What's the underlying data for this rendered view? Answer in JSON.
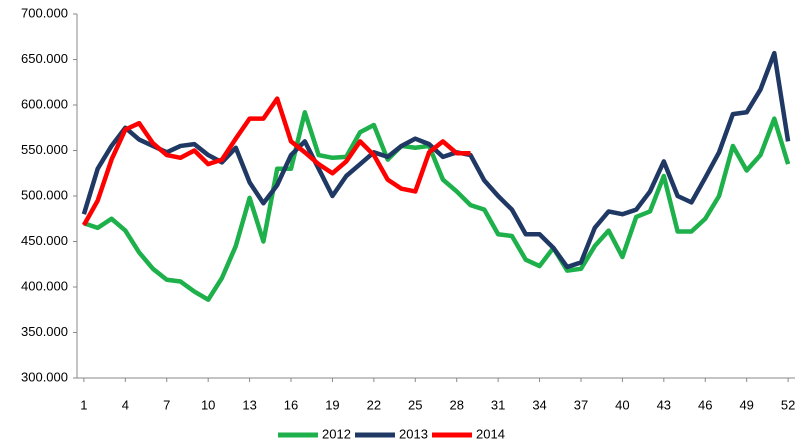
{
  "chart_data": {
    "type": "line",
    "x": [
      1,
      2,
      3,
      4,
      5,
      6,
      7,
      8,
      9,
      10,
      11,
      12,
      13,
      14,
      15,
      16,
      17,
      18,
      19,
      20,
      21,
      22,
      23,
      24,
      25,
      26,
      27,
      28,
      29,
      30,
      31,
      32,
      33,
      34,
      35,
      36,
      37,
      38,
      39,
      40,
      41,
      42,
      43,
      44,
      45,
      46,
      47,
      48,
      49,
      50,
      51,
      52
    ],
    "series": [
      {
        "name": "2012",
        "color": "#1db04b",
        "values": [
          470000,
          465000,
          475000,
          462000,
          438000,
          420000,
          408000,
          406000,
          395000,
          386000,
          410000,
          445000,
          498000,
          450000,
          530000,
          530000,
          592000,
          545000,
          542000,
          543000,
          570000,
          578000,
          540000,
          555000,
          553000,
          555000,
          518000,
          505000,
          490000,
          485000,
          458000,
          456000,
          430000,
          423000,
          443000,
          418000,
          420000,
          445000,
          462000,
          433000,
          477000,
          483000,
          522000,
          461000,
          461000,
          475000,
          500000,
          555000,
          528000,
          545000,
          585000,
          535000
        ]
      },
      {
        "name": "2013",
        "color": "#1f3864",
        "values": [
          480000,
          530000,
          555000,
          575000,
          562000,
          555000,
          548000,
          555000,
          557000,
          545000,
          537000,
          553000,
          515000,
          492000,
          512000,
          545000,
          560000,
          530000,
          500000,
          522000,
          535000,
          548000,
          543000,
          555000,
          563000,
          557000,
          543000,
          548000,
          545000,
          517000,
          500000,
          485000,
          458000,
          458000,
          443000,
          422000,
          427000,
          465000,
          483000,
          480000,
          485000,
          505000,
          538000,
          500000,
          493000,
          520000,
          548000,
          590000,
          592000,
          617000,
          657000,
          560000
        ]
      },
      {
        "name": "2014",
        "color": "#ff0000",
        "values": [
          468000,
          495000,
          540000,
          573000,
          580000,
          558000,
          545000,
          542000,
          550000,
          535000,
          540000,
          563000,
          585000,
          585000,
          607000,
          560000,
          548000,
          535000,
          525000,
          538000,
          560000,
          545000,
          518000,
          508000,
          505000,
          548000,
          560000,
          547000,
          547000,
          null,
          null,
          null,
          null,
          null,
          null,
          null,
          null,
          null,
          null,
          null,
          null,
          null,
          null,
          null,
          null,
          null,
          null,
          null,
          null,
          null,
          null,
          null
        ]
      }
    ],
    "xlim": [
      0.5,
      52.5
    ],
    "xticks": [
      1,
      4,
      7,
      10,
      13,
      16,
      19,
      22,
      25,
      28,
      31,
      34,
      37,
      40,
      43,
      46,
      49,
      52
    ],
    "ylim": [
      300000,
      700000
    ],
    "yticks": [
      {
        "value": 300000,
        "label": "300.000"
      },
      {
        "value": 350000,
        "label": "350.000"
      },
      {
        "value": 400000,
        "label": "400.000"
      },
      {
        "value": 450000,
        "label": "450.000"
      },
      {
        "value": 500000,
        "label": "500.000"
      },
      {
        "value": 550000,
        "label": "550.000"
      },
      {
        "value": 600000,
        "label": "600.000"
      },
      {
        "value": 650000,
        "label": "650.000"
      },
      {
        "value": 700000,
        "label": "700.000"
      }
    ],
    "grid": false,
    "legend": "bottom"
  }
}
